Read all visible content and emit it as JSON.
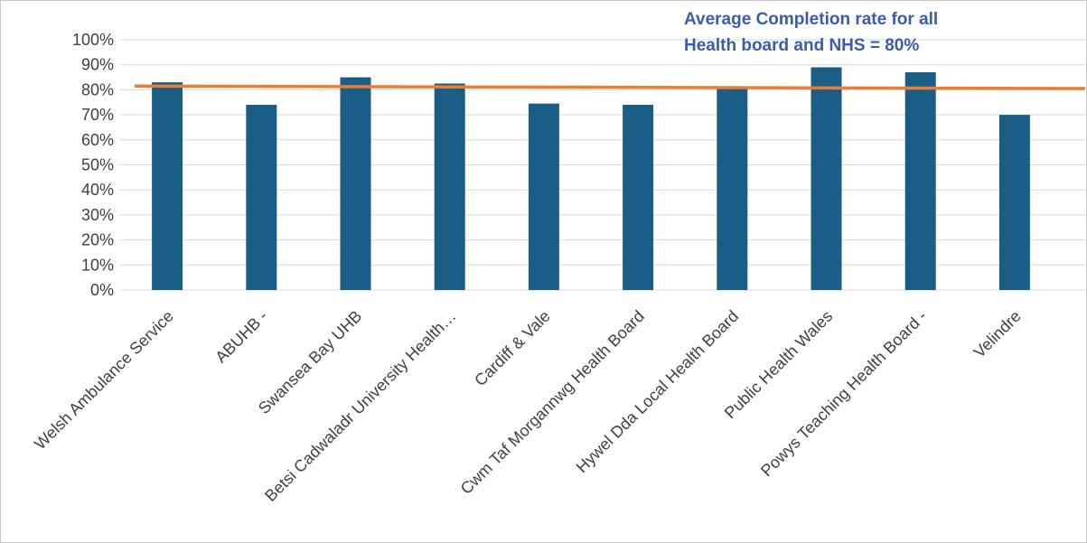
{
  "chart_data": {
    "type": "bar",
    "categories": [
      "Welsh Ambulance Service",
      "ABUHB -",
      "Swansea Bay UHB",
      "Betsi Cadwaladr University Health…",
      "Cardiff & Vale",
      "Cwm Taf Morgannwg Health Board",
      "Hywel Dda Local Health Board",
      "Public Health Wales",
      "Powys Teaching Health Board -",
      "Velindre"
    ],
    "values": [
      0.83,
      0.74,
      0.85,
      0.825,
      0.745,
      0.74,
      0.81,
      0.89,
      0.87,
      0.7
    ],
    "ylim": [
      0,
      1
    ],
    "yticks": [
      0,
      0.1,
      0.2,
      0.3,
      0.4,
      0.5,
      0.6,
      0.7,
      0.8,
      0.9,
      1.0
    ],
    "ytick_labels": [
      "0%",
      "10%",
      "20%",
      "30%",
      "40%",
      "50%",
      "60%",
      "70%",
      "80%",
      "90%",
      "100%"
    ],
    "title": "",
    "xlabel": "",
    "ylabel": "",
    "grid": true,
    "legend": "none",
    "reference_line": {
      "value": 0.8,
      "y_start": 0.815,
      "y_end": 0.805
    },
    "annotation": {
      "lines": [
        "Average Completion rate for all",
        "Health board and NHS = 80%"
      ]
    },
    "colors": {
      "bar": "#1a5e85",
      "reference_line": "#ed7d31",
      "annotation": "#3b5cad",
      "grid": "#d9d9d9",
      "axis_text": "#404040"
    }
  }
}
